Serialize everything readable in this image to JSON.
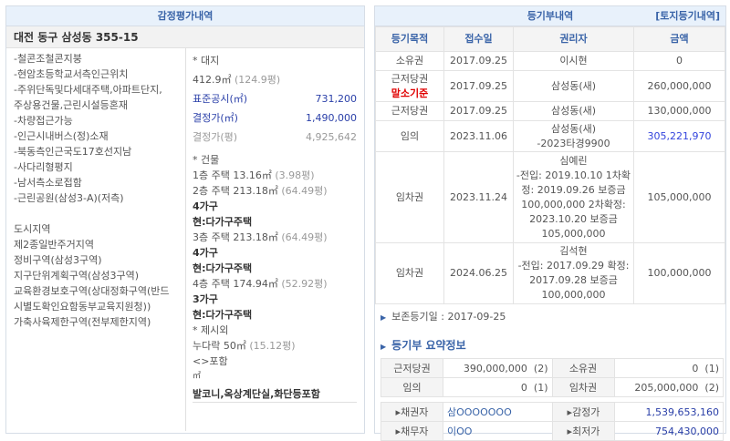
{
  "appraisal": {
    "title": "감정평가내역",
    "address": "대전 동구 삼성동 355-15",
    "features": [
      "-철콘조철콘지붕",
      "-현암초등학교서측인근위치",
      "-주위단독및다세대주택,아파트단지,",
      "주상용건물,근린시설등혼재",
      "-차량접근가능",
      "-인근시내버스(정)소재",
      "-북동측인근국도17호선지남",
      "-사다리형평지",
      "-남서측소로접함",
      "-근린공원(삼성3-A)(저측)"
    ],
    "zones": [
      "도시지역",
      "제2종일반주거지역",
      "정비구역(삼성3구역)",
      "지구단위계획구역(삼성3구역)",
      "교육환경보호구역(상대정화구역(반드",
      "시별도확인요함동부교육지원청))",
      "가축사육제한구역(전부제한지역)"
    ],
    "land": {
      "heading": "* 대지",
      "area": "412.9㎡",
      "area_py": "(124.9평)",
      "std_label": "표준공시(㎡)",
      "std_value": "731,200",
      "price_label": "결정가(㎡)",
      "price_value": "1,490,000",
      "price_py_label": "결정가(평)",
      "price_py_value": "4,925,642"
    },
    "building": {
      "heading": "* 건물",
      "floors": [
        {
          "line": "1층 주택 13.16㎡",
          "py": "(3.98평)"
        },
        {
          "line": "2층 주택 213.18㎡",
          "py": "(64.49평)",
          "units": "4가구",
          "use": "현:다가구주택"
        },
        {
          "line": "3층 주택 213.18㎡",
          "py": "(64.49평)",
          "units": "4가구",
          "use": "현:다가구주택"
        },
        {
          "line": "4층 주택 174.94㎡",
          "py": "(52.92평)",
          "units": "3가구",
          "use": "현:다가구주택"
        }
      ]
    },
    "extra": {
      "heading": "* 제시외",
      "line": "누다락 50㎡",
      "py": "(15.12평)",
      "incl": "<>포함",
      "unit": "㎡",
      "note": "발코니,옥상계단실,화단등포함"
    }
  },
  "registry": {
    "title": "등기부내역",
    "land_link": "[토지등기내역]",
    "columns": [
      "등기목적",
      "접수일",
      "권리자",
      "금액"
    ],
    "rows": [
      {
        "type": "소유권",
        "date": "2017.09.25",
        "holder": "이시현",
        "amount": "0"
      },
      {
        "type": "근저당권",
        "tag": "말소기준",
        "date": "2017.09.25",
        "holder": "삼성동(새)",
        "amount": "260,000,000"
      },
      {
        "type": "근저당권",
        "date": "2017.09.25",
        "holder": "삼성동(새)",
        "amount": "130,000,000"
      },
      {
        "type": "임의",
        "date": "2023.11.06",
        "holder": "삼성동(새)",
        "holder2": "-2023타경9900",
        "amount": "305,221,970"
      },
      {
        "type": "임차권",
        "date": "2023.11.24",
        "holder": "심예린",
        "holder2": "-전입: 2019.10.10 1차확정: 2019.09.26 보증금 100,000,000 2차확정: 2023.10.20 보증금 105,000,000",
        "amount": "105,000,000"
      },
      {
        "type": "임차권",
        "date": "2024.06.25",
        "holder": "김석현",
        "holder2": "-전입: 2017.09.29 확정: 2017.09.28 보증금 100,000,000",
        "amount": "100,000,000"
      }
    ],
    "preservation": "보존등기일 : 2017-09-25",
    "summary_title": "등기부 요약정보",
    "summary": [
      {
        "k1": "근저당권",
        "v1": "390,000,000",
        "c1": "(2)",
        "k2": "소유권",
        "v2": "0",
        "c2": "(1)"
      },
      {
        "k1": "임의",
        "v1": "0",
        "c1": "(1)",
        "k2": "임차권",
        "v2": "205,000,000",
        "c2": "(2)"
      }
    ],
    "info": [
      {
        "k1": "▸채권자",
        "v1": "삼OOOOOOO",
        "k2": "▸감정가",
        "v2": "1,539,653,160"
      },
      {
        "k1": "▸채무자",
        "v1": "이OO",
        "k2": "▸최저가",
        "v2": "754,430,000"
      }
    ]
  }
}
